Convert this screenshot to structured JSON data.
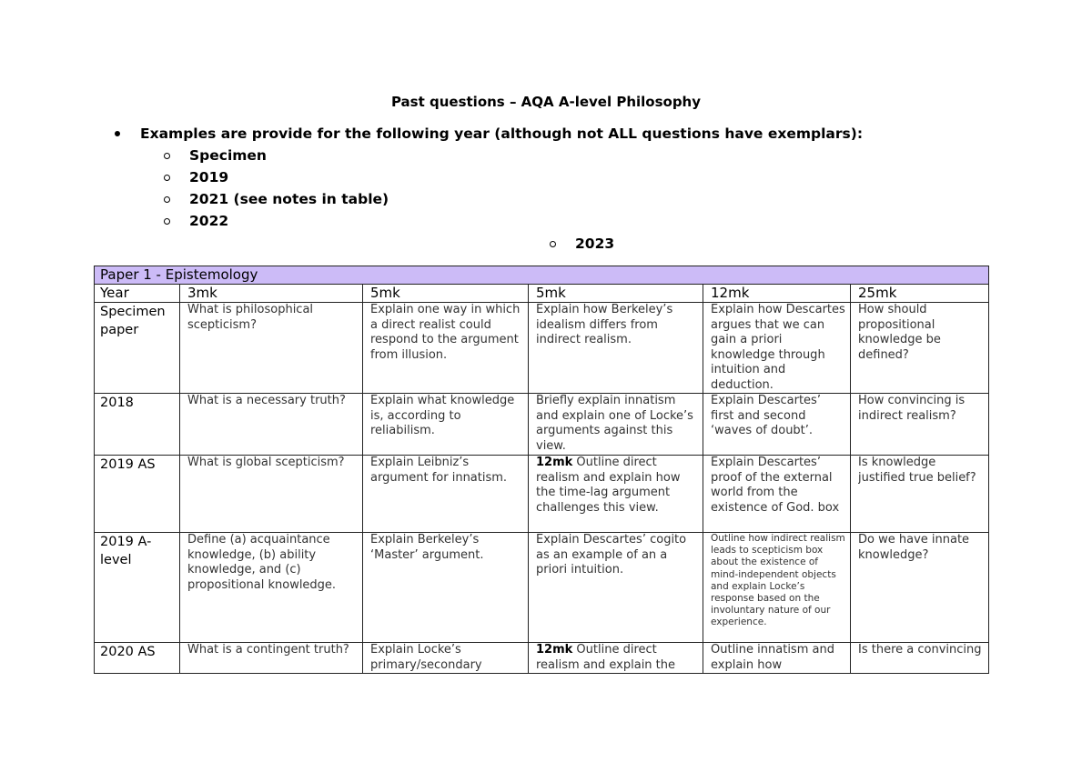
{
  "title": "Past questions – AQA A-level Philosophy",
  "intro": "Examples are provide for the following year (although not ALL questions have exemplars):",
  "years_list": [
    "Specimen",
    "2019",
    "2021 (see notes in table)",
    "2022",
    "2023"
  ],
  "table": {
    "section": "Paper 1 - Epistemology",
    "headers": [
      "Year",
      "3mk",
      "5mk",
      "5mk",
      "12mk",
      "25mk"
    ],
    "rows": [
      {
        "year": "Specimen paper",
        "cells": [
          {
            "text": "What is philosophical scepticism?"
          },
          {
            "text": "Explain one way in which a direct realist could respond to the argument from illusion."
          },
          {
            "text": "Explain how Berkeley’s idealism differs from indirect realism."
          },
          {
            "text": "Explain how Descartes argues that we can gain a priori knowledge through intuition and deduction."
          },
          {
            "text": "How should propositional knowledge be defined?"
          }
        ]
      },
      {
        "year": "2018",
        "cells": [
          {
            "text": "What is a necessary truth?"
          },
          {
            "text": "Explain what knowledge is, according to reliabilism."
          },
          {
            "text": "Briefly explain innatism and explain one of Locke’s arguments against this view."
          },
          {
            "text": "Explain Descartes’ first and second ‘waves of doubt’."
          },
          {
            "text": "How convincing is indirect realism?"
          }
        ]
      },
      {
        "year": "2019 AS",
        "cells": [
          {
            "text": "What is global scepticism?"
          },
          {
            "text": "Explain Leibniz’s argument for innatism."
          },
          {
            "bold": "12mk",
            "text": " Outline direct realism and explain how the time-lag argument challenges this view."
          },
          {
            "text": "Explain Descartes’ proof of the external world from the existence of God. box"
          },
          {
            "text": "Is knowledge justified true belief?"
          }
        ]
      },
      {
        "year": "2019 A-level",
        "cells": [
          {
            "text": "Define (a) acquaintance knowledge, (b) ability knowledge, and (c) propositional knowledge."
          },
          {
            "text": "Explain Berkeley’s ‘Master’ argument."
          },
          {
            "text": "Explain Descartes’ cogito as an example of an a priori intuition."
          },
          {
            "text": "Outline how indirect realism leads to scepticism box about the existence of mind-independent objects and explain Locke’s response based on the involuntary nature of our experience."
          },
          {
            "text": "Do we have innate knowledge?"
          }
        ]
      },
      {
        "year": "2020 AS",
        "cells": [
          {
            "text": "What is a contingent truth?"
          },
          {
            "text": "Explain Locke’s primary/secondary"
          },
          {
            "bold": "12mk",
            "text": " Outline direct realism and explain the"
          },
          {
            "text": "Outline innatism and explain how"
          },
          {
            "text": "Is there a convincing"
          }
        ]
      }
    ]
  },
  "colors": {
    "section_header_bg": "#ccbbf7"
  }
}
